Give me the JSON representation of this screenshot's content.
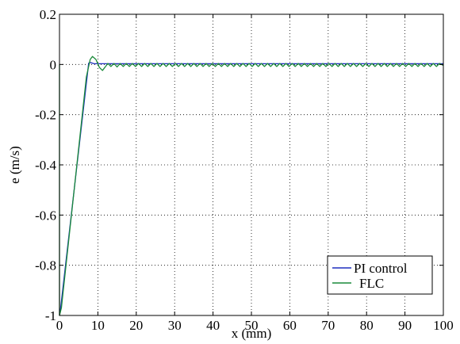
{
  "chart_data": {
    "type": "line",
    "xlabel": "x (mm)",
    "ylabel": "e (m/s)",
    "xlim": [
      0,
      100
    ],
    "ylim": [
      -1,
      0.2
    ],
    "x_ticks": [
      0,
      10,
      20,
      30,
      40,
      50,
      60,
      70,
      80,
      90,
      100
    ],
    "x_tick_labels": [
      "0",
      "10",
      "20",
      "30",
      "40",
      "50",
      "60",
      "70",
      "80",
      "90",
      "100"
    ],
    "y_ticks": [
      0.2,
      0,
      -0.2,
      -0.4,
      -0.6,
      -0.8,
      -1
    ],
    "y_tick_labels": [
      "0.2",
      "0",
      "-0.2",
      "-0.4",
      "-0.6",
      "-0.8",
      "-1"
    ],
    "grid": true,
    "legend_position": "bottom-right",
    "series": [
      {
        "name": "PI  control",
        "color": "#1f2fbf",
        "points": [
          [
            0,
            -1
          ],
          [
            0.3,
            -0.97
          ],
          [
            7.6,
            0.005
          ],
          [
            8.0,
            0.008
          ],
          [
            9.0,
            0.003
          ],
          [
            100,
            0.003
          ]
        ]
      },
      {
        "name": "FLC",
        "color": "#1a8a3a",
        "points": [
          [
            0,
            0.0
          ],
          [
            0,
            -1
          ],
          [
            0.5,
            -0.97
          ],
          [
            7.0,
            -0.05
          ],
          [
            8.0,
            0.02
          ],
          [
            8.6,
            0.032
          ],
          [
            9.5,
            0.02
          ],
          [
            10.4,
            -0.012
          ],
          [
            11.2,
            -0.024
          ],
          [
            12.0,
            -0.008
          ],
          [
            12.6,
            0.004
          ],
          [
            13.4,
            -0.008
          ],
          [
            14.2,
            0.004
          ],
          [
            15.0,
            -0.01
          ],
          [
            15.8,
            0.004
          ],
          [
            16.6,
            -0.008
          ],
          [
            17.4,
            0.004
          ],
          [
            18.2,
            -0.008
          ],
          [
            19.0,
            0.004
          ],
          [
            19.8,
            -0.008
          ],
          [
            20.6,
            0.004
          ],
          [
            21.4,
            -0.008
          ],
          [
            22.2,
            0.004
          ],
          [
            23.0,
            -0.008
          ],
          [
            23.8,
            0.004
          ],
          [
            24.6,
            -0.008
          ],
          [
            25.4,
            0.004
          ],
          [
            26.2,
            -0.008
          ],
          [
            27.0,
            0.004
          ],
          [
            27.8,
            -0.008
          ],
          [
            28.6,
            0.004
          ],
          [
            29.4,
            -0.008
          ],
          [
            30.2,
            0.004
          ],
          [
            31.0,
            -0.008
          ],
          [
            31.8,
            0.004
          ],
          [
            32.6,
            -0.008
          ],
          [
            33.4,
            0.004
          ],
          [
            34.2,
            -0.008
          ],
          [
            35.0,
            0.004
          ],
          [
            35.8,
            -0.008
          ],
          [
            36.6,
            0.004
          ],
          [
            37.4,
            -0.008
          ],
          [
            38.2,
            0.004
          ],
          [
            39.0,
            -0.008
          ],
          [
            39.8,
            0.004
          ],
          [
            40.6,
            -0.008
          ],
          [
            41.4,
            0.004
          ],
          [
            42.2,
            -0.008
          ],
          [
            43.0,
            0.004
          ],
          [
            43.8,
            -0.008
          ],
          [
            44.6,
            0.004
          ],
          [
            45.4,
            -0.008
          ],
          [
            46.2,
            0.004
          ],
          [
            47.0,
            -0.008
          ],
          [
            47.8,
            0.004
          ],
          [
            48.6,
            -0.008
          ],
          [
            49.4,
            0.004
          ],
          [
            50.2,
            -0.008
          ],
          [
            51.0,
            0.004
          ],
          [
            51.8,
            -0.008
          ],
          [
            52.6,
            0.004
          ],
          [
            53.4,
            -0.008
          ],
          [
            54.2,
            0.004
          ],
          [
            55.0,
            -0.008
          ],
          [
            55.8,
            0.004
          ],
          [
            56.6,
            -0.008
          ],
          [
            57.4,
            0.004
          ],
          [
            58.2,
            -0.008
          ],
          [
            59.0,
            0.004
          ],
          [
            59.8,
            -0.008
          ],
          [
            60.6,
            0.004
          ],
          [
            61.4,
            -0.008
          ],
          [
            62.2,
            0.004
          ],
          [
            63.0,
            -0.008
          ],
          [
            63.8,
            0.004
          ],
          [
            64.6,
            -0.008
          ],
          [
            65.4,
            0.004
          ],
          [
            66.2,
            -0.008
          ],
          [
            67.0,
            0.004
          ],
          [
            67.8,
            -0.008
          ],
          [
            68.6,
            0.004
          ],
          [
            69.4,
            -0.008
          ],
          [
            70.2,
            0.004
          ],
          [
            71.0,
            -0.008
          ],
          [
            71.8,
            0.004
          ],
          [
            72.6,
            -0.008
          ],
          [
            73.4,
            0.004
          ],
          [
            74.2,
            -0.008
          ],
          [
            75.0,
            0.004
          ],
          [
            75.8,
            -0.008
          ],
          [
            76.6,
            0.004
          ],
          [
            77.4,
            -0.008
          ],
          [
            78.2,
            0.004
          ],
          [
            79.0,
            -0.008
          ],
          [
            79.8,
            0.004
          ],
          [
            80.6,
            -0.008
          ],
          [
            81.4,
            0.004
          ],
          [
            82.2,
            -0.008
          ],
          [
            83.0,
            0.004
          ],
          [
            83.8,
            -0.008
          ],
          [
            84.6,
            0.004
          ],
          [
            85.4,
            -0.008
          ],
          [
            86.2,
            0.004
          ],
          [
            87.0,
            -0.008
          ],
          [
            87.8,
            0.004
          ],
          [
            88.6,
            -0.008
          ],
          [
            89.4,
            0.004
          ],
          [
            90.2,
            -0.008
          ],
          [
            91.0,
            0.004
          ],
          [
            91.8,
            -0.008
          ],
          [
            92.6,
            0.004
          ],
          [
            93.4,
            -0.008
          ],
          [
            94.2,
            0.004
          ],
          [
            95.0,
            -0.008
          ],
          [
            95.8,
            0.004
          ],
          [
            96.6,
            -0.008
          ],
          [
            97.4,
            0.004
          ],
          [
            98.2,
            -0.008
          ],
          [
            99.0,
            0.004
          ],
          [
            100,
            -0.004
          ]
        ]
      }
    ]
  }
}
